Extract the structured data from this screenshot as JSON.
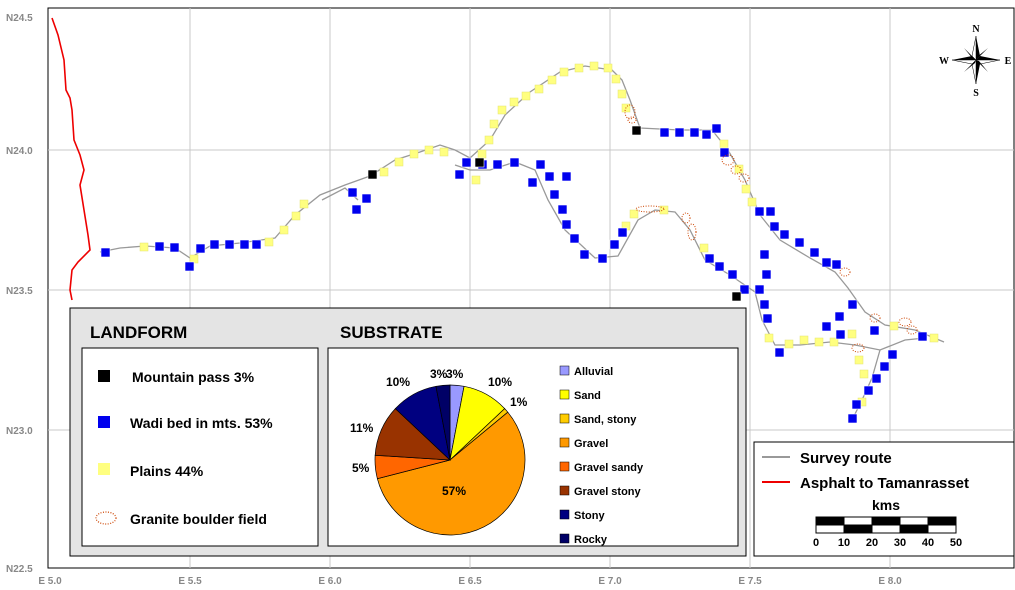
{
  "axes": {
    "lat_labels": [
      "N24.5",
      "N24.0",
      "N23.5",
      "N23.0",
      "N22.5"
    ],
    "lon_labels": [
      "E 5.0",
      "E 5.5",
      "E 6.0",
      "E 6.5",
      "E 7.0",
      "E 7.5",
      "E 8.0"
    ]
  },
  "compass": {
    "n": "N",
    "s": "S",
    "e": "E",
    "w": "W"
  },
  "landform": {
    "title": "LANDFORM",
    "items": [
      {
        "label": "Mountain pass 3%",
        "color": "#000000"
      },
      {
        "label": "Wadi bed in mts. 53%",
        "color": "#0000ee"
      },
      {
        "label": "Plains  44%",
        "color": "#ffff80"
      },
      {
        "label": "Granite boulder field",
        "color": "#cc4400"
      }
    ]
  },
  "substrate": {
    "title": "SUBSTRATE",
    "slice_labels": [
      "3%",
      "3%",
      "10%",
      "1%",
      "57%",
      "5%",
      "11%",
      "10%"
    ],
    "legend": [
      {
        "label": "Alluvial",
        "color": "#9999ff"
      },
      {
        "label": "Sand",
        "color": "#ffff00"
      },
      {
        "label": "Sand, stony",
        "color": "#ffcc00"
      },
      {
        "label": "Gravel",
        "color": "#ff9900"
      },
      {
        "label": "Gravel sandy",
        "color": "#ff6600"
      },
      {
        "label": "Gravel stony",
        "color": "#993300"
      },
      {
        "label": "Stony",
        "color": "#000080"
      },
      {
        "label": "Rocky",
        "color": "#000066"
      }
    ]
  },
  "chart_data": {
    "type": "pie",
    "title": "SUBSTRATE",
    "slices": [
      {
        "name": "Alluvial",
        "value": 3,
        "color": "#9999ff"
      },
      {
        "name": "Sand",
        "value": 10,
        "color": "#ffff00"
      },
      {
        "name": "Sand, stony",
        "value": 1,
        "color": "#ffcc00"
      },
      {
        "name": "Gravel",
        "value": 57,
        "color": "#ff9900"
      },
      {
        "name": "Gravel sandy",
        "value": 5,
        "color": "#ff6600"
      },
      {
        "name": "Gravel stony",
        "value": 11,
        "color": "#993300"
      },
      {
        "name": "Stony",
        "value": 10,
        "color": "#000080"
      },
      {
        "name": "Rocky",
        "value": 3,
        "color": "#000066"
      }
    ]
  },
  "routes": {
    "survey_label": "Survey route",
    "asphalt_label": "Asphalt to Tamanrasset",
    "survey_color": "#999999",
    "asphalt_color": "#ee0000"
  },
  "scale": {
    "title": "kms",
    "ticks": [
      "0",
      "10",
      "20",
      "30",
      "40",
      "50"
    ]
  }
}
